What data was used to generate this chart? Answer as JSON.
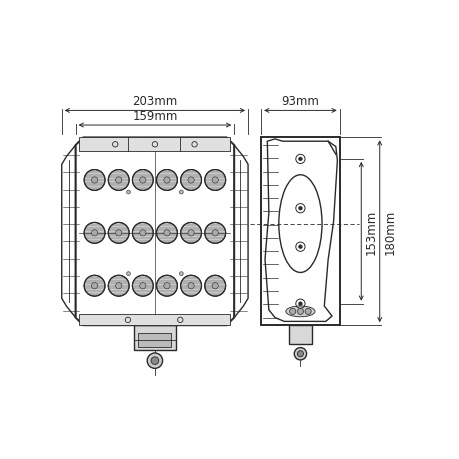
{
  "bg_color": "#ffffff",
  "line_color": "#2a2a2a",
  "dim_color": "#2a2a2a",
  "dim_203": "203mm",
  "dim_159": "159mm",
  "dim_93": "93mm",
  "dim_153": "153mm",
  "dim_180": "180mm",
  "font_size": 8.5,
  "lc": "#2a2a2a",
  "gray_light": "#cccccc",
  "gray_med": "#999999",
  "gray_dark": "#666666",
  "gray_led": "#888888"
}
